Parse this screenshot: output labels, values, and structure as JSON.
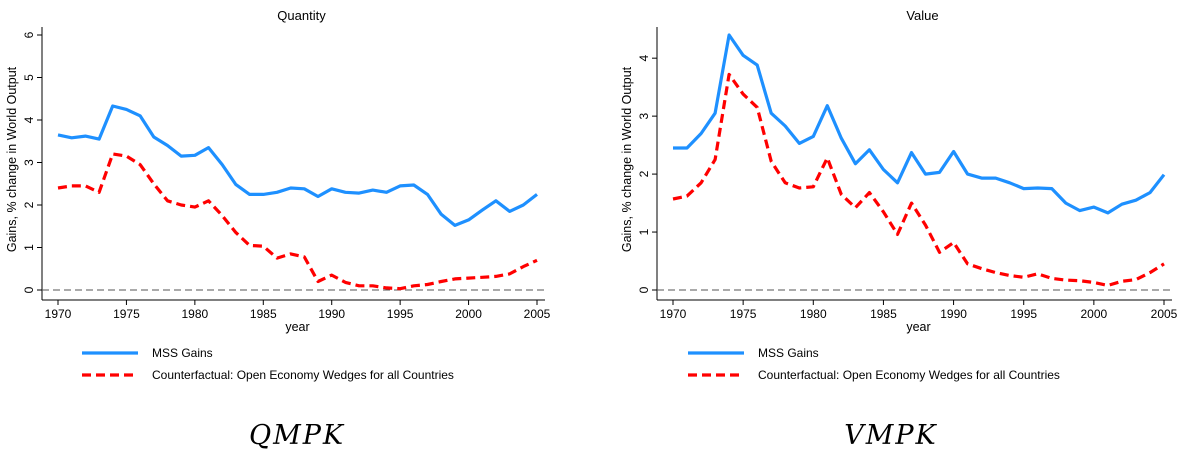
{
  "chart_data": [
    {
      "type": "line",
      "title": "Quantity",
      "xlabel": "year",
      "ylabel": "Gains, % change in World Output",
      "xlim": [
        1970,
        2005
      ],
      "ylim": [
        0,
        6
      ],
      "xticks": [
        1970,
        1975,
        1980,
        1985,
        1990,
        1995,
        2000,
        2005
      ],
      "yticks": [
        0,
        1,
        2,
        3,
        4,
        5,
        6
      ],
      "x": [
        1970,
        1971,
        1972,
        1973,
        1974,
        1975,
        1976,
        1977,
        1978,
        1979,
        1980,
        1981,
        1982,
        1983,
        1984,
        1985,
        1986,
        1987,
        1988,
        1989,
        1990,
        1991,
        1992,
        1993,
        1994,
        1995,
        1996,
        1997,
        1998,
        1999,
        2000,
        2001,
        2002,
        2003,
        2004,
        2005
      ],
      "reference_line": 0,
      "legend_position": "bottom",
      "series": [
        {
          "name": "MSS Gains",
          "color": "#1e90ff",
          "style": "solid",
          "values": [
            3.65,
            3.58,
            3.62,
            3.55,
            4.33,
            4.25,
            4.1,
            3.6,
            3.4,
            3.15,
            3.17,
            3.35,
            2.95,
            2.48,
            2.25,
            2.25,
            2.3,
            2.4,
            2.38,
            2.2,
            2.38,
            2.3,
            2.28,
            2.35,
            2.3,
            2.45,
            2.47,
            2.25,
            1.78,
            1.52,
            1.65,
            1.88,
            2.1,
            1.85,
            2.0,
            2.25
          ]
        },
        {
          "name": "Counterfactual: Open Economy Wedges for all Countries",
          "color": "#ff0000",
          "style": "dashed",
          "values": [
            2.4,
            2.45,
            2.45,
            2.3,
            3.2,
            3.15,
            2.95,
            2.5,
            2.1,
            2.0,
            1.95,
            2.1,
            1.75,
            1.35,
            1.05,
            1.03,
            0.75,
            0.85,
            0.78,
            0.2,
            0.35,
            0.18,
            0.1,
            0.1,
            0.05,
            0.03,
            0.1,
            0.13,
            0.2,
            0.26,
            0.28,
            0.3,
            0.32,
            0.38,
            0.55,
            0.7
          ]
        }
      ]
    },
    {
      "type": "line",
      "title": "Value",
      "xlabel": "year",
      "ylabel": "Gains, % change in World Output",
      "xlim": [
        1970,
        2005
      ],
      "ylim": [
        0,
        4.4
      ],
      "xticks": [
        1970,
        1975,
        1980,
        1985,
        1990,
        1995,
        2000,
        2005
      ],
      "yticks": [
        0,
        1,
        2,
        3,
        4
      ],
      "x": [
        1970,
        1971,
        1972,
        1973,
        1974,
        1975,
        1976,
        1977,
        1978,
        1979,
        1980,
        1981,
        1982,
        1983,
        1984,
        1985,
        1986,
        1987,
        1988,
        1989,
        1990,
        1991,
        1992,
        1993,
        1994,
        1995,
        1996,
        1997,
        1998,
        1999,
        2000,
        2001,
        2002,
        2003,
        2004,
        2005
      ],
      "reference_line": 0,
      "legend_position": "bottom",
      "series": [
        {
          "name": "MSS Gains",
          "color": "#1e90ff",
          "style": "solid",
          "values": [
            2.45,
            2.45,
            2.7,
            3.05,
            4.4,
            4.05,
            3.88,
            3.05,
            2.83,
            2.53,
            2.65,
            3.18,
            2.62,
            2.18,
            2.42,
            2.08,
            1.85,
            2.37,
            2.0,
            2.03,
            2.39,
            2.0,
            1.93,
            1.93,
            1.85,
            1.75,
            1.76,
            1.75,
            1.5,
            1.37,
            1.43,
            1.33,
            1.48,
            1.55,
            1.68,
            1.99
          ]
        },
        {
          "name": "Counterfactual: Open Economy Wedges for all Countries",
          "color": "#ff0000",
          "style": "dashed",
          "values": [
            1.57,
            1.62,
            1.85,
            2.25,
            3.72,
            3.38,
            3.15,
            2.22,
            1.85,
            1.76,
            1.78,
            2.28,
            1.65,
            1.42,
            1.68,
            1.35,
            0.96,
            1.5,
            1.12,
            0.65,
            0.82,
            0.45,
            0.37,
            0.3,
            0.25,
            0.22,
            0.28,
            0.2,
            0.17,
            0.16,
            0.13,
            0.08,
            0.15,
            0.18,
            0.3,
            0.45
          ]
        }
      ]
    }
  ],
  "captions": [
    "QMPK",
    "VMPK"
  ]
}
